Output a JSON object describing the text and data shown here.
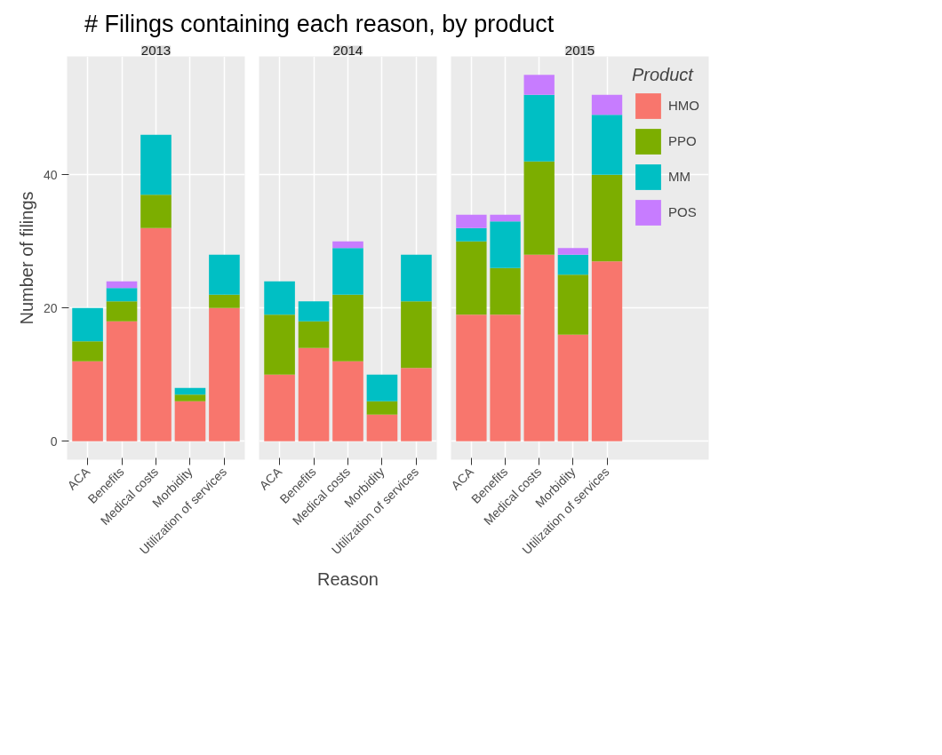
{
  "chart_data": [
    {
      "type": "bar",
      "stacked": true,
      "title": "# Filings containing each reason, by product",
      "subtitle": "2013",
      "ylabel": "Number of filings",
      "categories": [
        "ACA",
        "Benefits",
        "Medical costs",
        "Morbidity",
        "Utilization of services"
      ],
      "ylim": [
        -2.75,
        57.75
      ],
      "yticks": [
        0,
        20,
        40
      ],
      "grid": true,
      "series": [
        {
          "color": "#f8766d",
          "values": [
            12,
            18,
            32,
            6,
            20
          ]
        },
        {
          "color": "#7cae00",
          "values": [
            3,
            3,
            5,
            1,
            2
          ]
        },
        {
          "color": "#00bfc4",
          "values": [
            5,
            2,
            9,
            1,
            6
          ]
        },
        {
          "color": "#c77cff",
          "values": [
            null,
            1,
            null,
            null,
            null
          ]
        }
      ]
    },
    {
      "type": "bar",
      "stacked": true,
      "subtitle": "2014",
      "xlabel": "Reason",
      "categories": [
        "ACA",
        "Benefits",
        "Medical costs",
        "Morbidity",
        "Utilization of services"
      ],
      "ylim": [
        -2.75,
        57.75
      ],
      "yticks": [
        0,
        20,
        40
      ],
      "grid": true,
      "tick_labels": "x",
      "series": [
        {
          "color": "#f8766d",
          "values": [
            10,
            14,
            12,
            4,
            11
          ]
        },
        {
          "color": "#7cae00",
          "values": [
            9,
            4,
            10,
            2,
            10
          ]
        },
        {
          "color": "#00bfc4",
          "values": [
            5,
            3,
            7,
            4,
            7
          ]
        },
        {
          "color": "#c77cff",
          "values": [
            null,
            null,
            1,
            null,
            null
          ]
        }
      ]
    },
    {
      "type": "bar",
      "stacked": true,
      "subtitle": "2015",
      "categories": [
        "ACA",
        "Benefits",
        "Medical costs",
        "Morbidity",
        "Utilization of services"
      ],
      "ylim": [
        -2.75,
        57.75
      ],
      "yticks": [
        0,
        20,
        40
      ],
      "grid": true,
      "legend": "right",
      "legend_title": "Product",
      "tick_labels": "x",
      "series": [
        {
          "name": "HMO",
          "color": "#f8766d",
          "values": [
            19,
            19,
            28,
            16,
            27
          ]
        },
        {
          "name": "PPO",
          "color": "#7cae00",
          "values": [
            11,
            7,
            14,
            9,
            13
          ]
        },
        {
          "name": "MM",
          "color": "#00bfc4",
          "values": [
            2,
            7,
            10,
            3,
            9
          ]
        },
        {
          "name": "POS",
          "color": "#c77cff",
          "values": [
            2,
            1,
            3,
            1,
            3
          ]
        }
      ]
    }
  ]
}
